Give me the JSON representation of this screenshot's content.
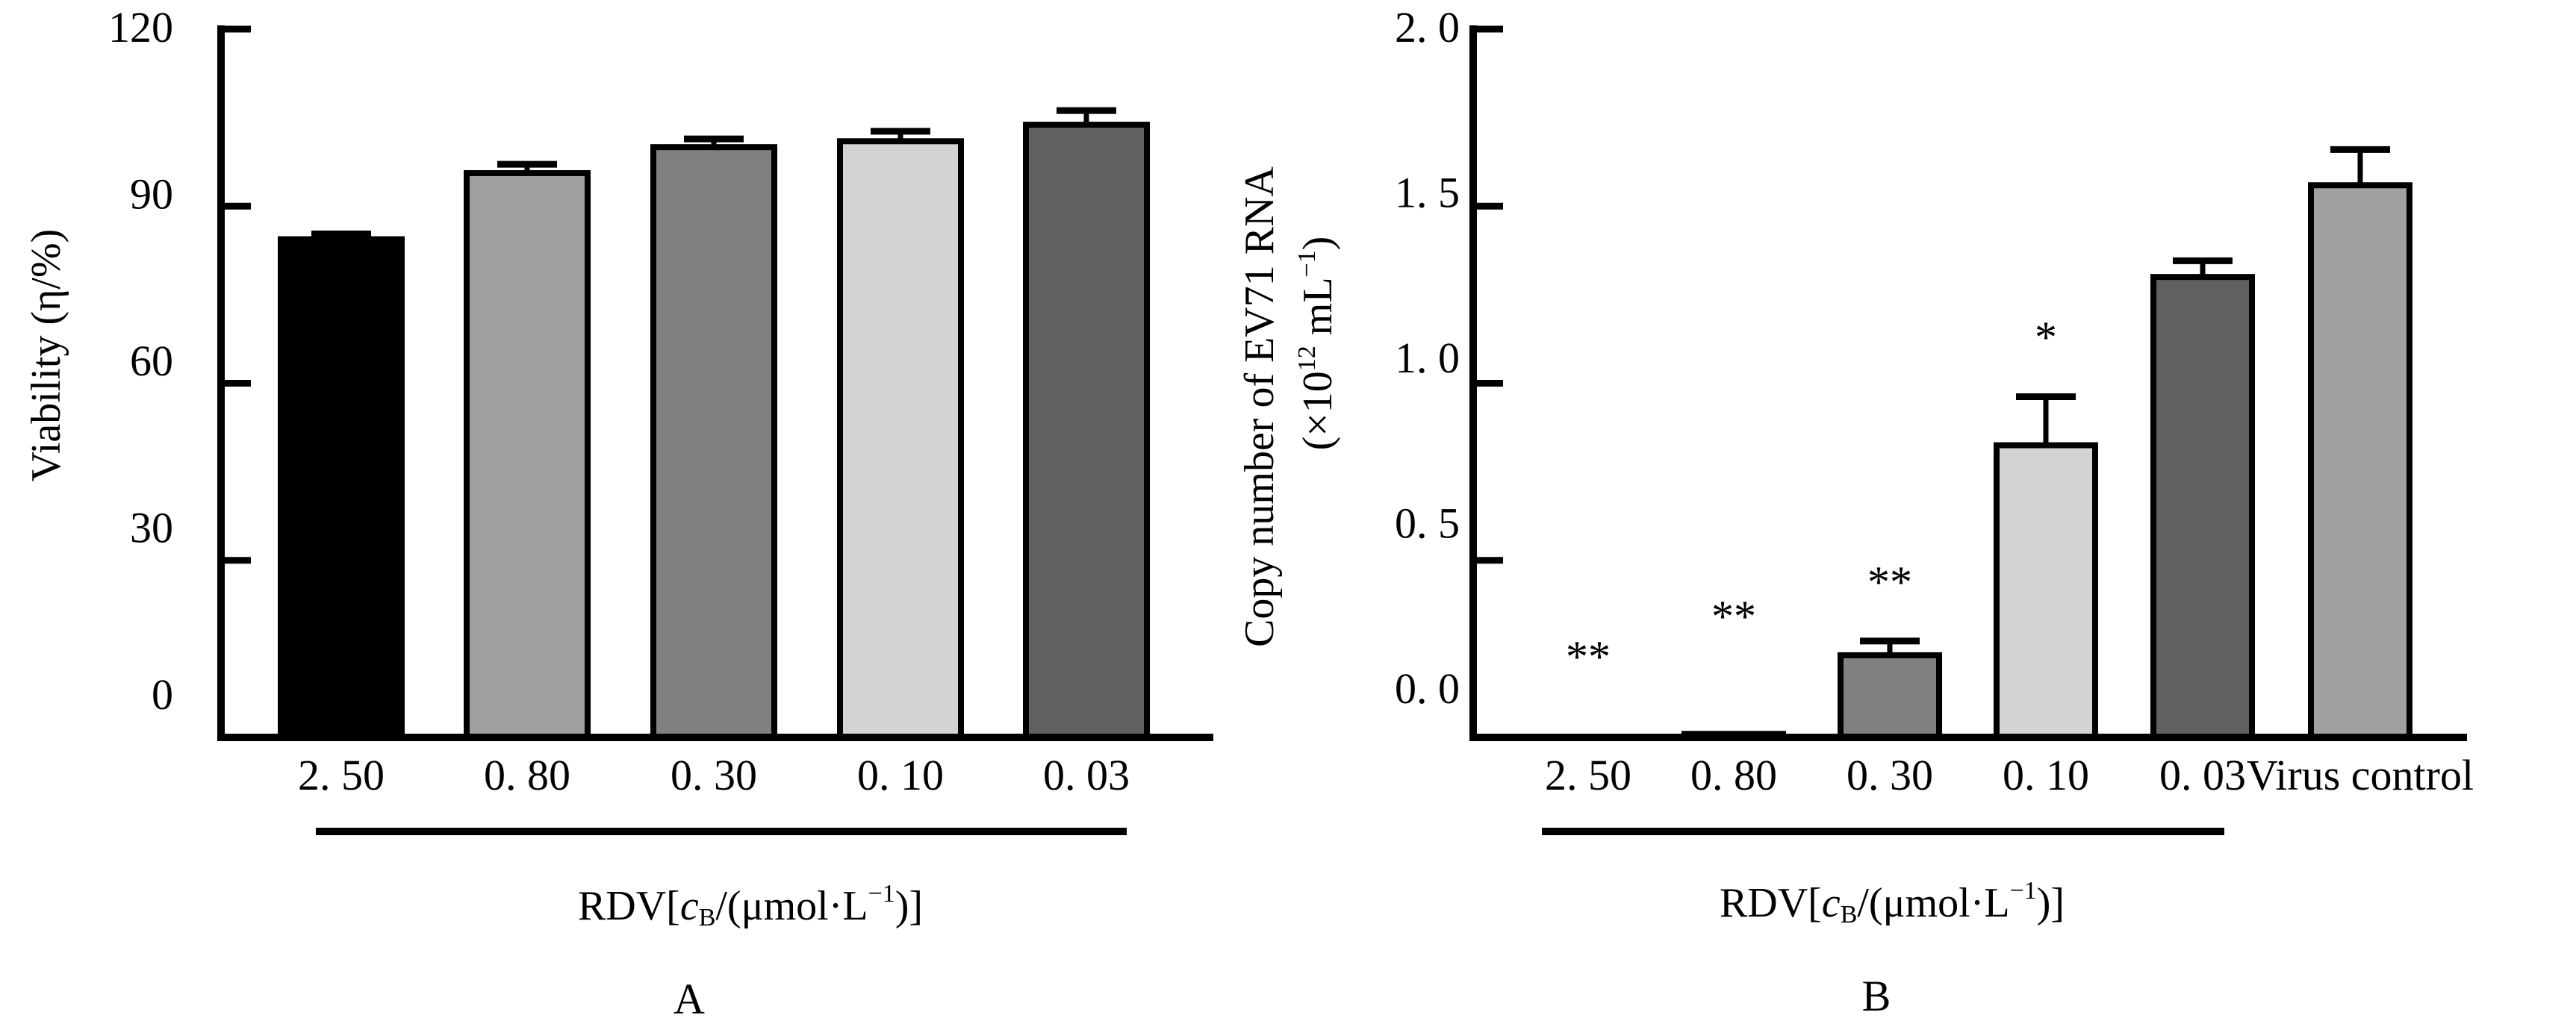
{
  "chart_data": [
    {
      "panel": "A",
      "type": "bar",
      "title": "",
      "ylabel": "Viability (η/%)",
      "xlabel": "RDV[cB/(μmol·L⁻¹)]",
      "group_label": "RDV[cB/(μmol·L⁻¹)]",
      "ylim": [
        0,
        120
      ],
      "yticks": [
        0,
        30,
        60,
        90,
        120
      ],
      "ytick_labels": [
        "0",
        "30",
        "60",
        "90",
        "120"
      ],
      "categories": [
        "2. 50",
        "0. 80",
        "0. 30",
        "0. 10",
        "0. 03"
      ],
      "values": [
        84.4,
        95.6,
        100.0,
        101.0,
        103.8
      ],
      "error_upper": [
        85.3,
        97.1,
        101.4,
        102.7,
        106.2
      ],
      "colors": [
        "#000000",
        "#a0a0a0",
        "#808080",
        "#d3d3d3",
        "#606060"
      ],
      "annotations": [
        "",
        "",
        "",
        "",
        ""
      ],
      "grouped_categories": 5,
      "grid": false,
      "legend": "none"
    },
    {
      "panel": "B",
      "type": "bar",
      "title": "",
      "ylabel": "Copy number of EV71 RNA",
      "ylabel_line2_prefix": "(×10",
      "ylabel_line2_sup": "12",
      "ylabel_line2_mid": " mL",
      "ylabel_line2_sup2": "−1",
      "ylabel_line2_suffix": ")",
      "xlabel": "RDV[cB/(μmol·L⁻¹)]",
      "group_label": "RDV[cB/(μmol·L⁻¹)]",
      "ylim": [
        0,
        2.0
      ],
      "yticks": [
        0,
        0.5,
        1.0,
        1.5,
        2.0
      ],
      "ytick_labels": [
        "0. 0",
        "0. 5",
        "1. 0",
        "1. 5",
        "2. 0"
      ],
      "categories": [
        "2. 50",
        "0. 80",
        "0. 30",
        "0. 10",
        "0. 03",
        "Virus control"
      ],
      "values": [
        0.0,
        0.01,
        0.232,
        0.825,
        1.3,
        1.559
      ],
      "error_upper": [
        0.0,
        0.01,
        0.272,
        0.962,
        1.346,
        1.66
      ],
      "colors": [
        "#808080",
        "#000000",
        "#808080",
        "#d3d3d3",
        "#606060",
        "#a0a0a0"
      ],
      "annotations": [
        "**",
        "**",
        "**",
        "*",
        "",
        ""
      ],
      "grouped_categories": 5,
      "grid": false,
      "legend": "none"
    }
  ],
  "panel_labels": [
    "A",
    "B"
  ],
  "axis_label_parts": {
    "prefix": "RDV[",
    "c": "c",
    "sub": "B",
    "mid": "/(μmol·L",
    "sup": "−1",
    "suffix": ")]"
  }
}
